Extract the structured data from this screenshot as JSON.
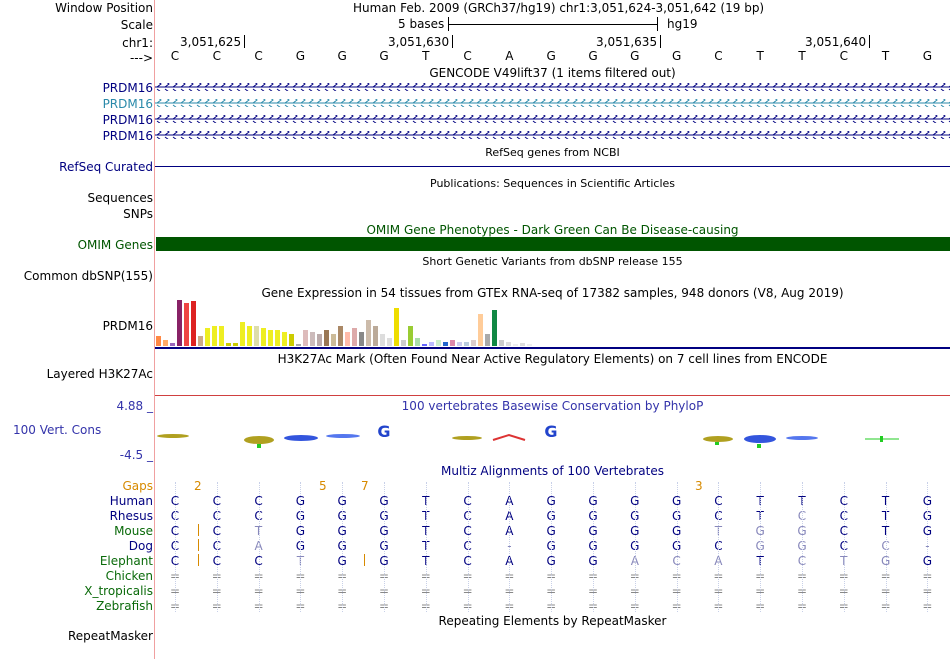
{
  "header": {
    "window_position_label": "Window Position",
    "window_position_value": "Human Feb. 2009 (GRCh37/hg19)   chr1:3,051,624-3,051,642 (19 bp)",
    "scale_label": "Scale",
    "scale_value": "5 bases",
    "scale_db": "hg19",
    "chrom_label": "chr1:",
    "coords": [
      "3,051,625",
      "3,051,630",
      "3,051,635",
      "3,051,640"
    ],
    "strand_label": "--->",
    "bases": [
      "C",
      "C",
      "C",
      "G",
      "G",
      "G",
      "T",
      "C",
      "A",
      "G",
      "G",
      "G",
      "G",
      "C",
      "T",
      "T",
      "C",
      "T",
      "G"
    ]
  },
  "tracks": {
    "gencode_title": "GENCODE V49lift37 (1 items filtered out)",
    "gencode_items": [
      "PRDM16",
      "PRDM16",
      "PRDM16",
      "PRDM16"
    ],
    "refseq_title": "RefSeq genes from NCBI",
    "refseq_label": "RefSeq Curated",
    "publications_title": "Publications: Sequences in Scientific Articles",
    "sequences_label": "Sequences",
    "snps_label": "SNPs",
    "omim_title": "OMIM Gene Phenotypes - Dark Green Can Be Disease-causing",
    "omim_label": "OMIM Genes",
    "dbsnp_title": "Short Genetic Variants from dbSNP release 155",
    "dbsnp_label": "Common dbSNP(155)",
    "gtex_title": "Gene Expression in 54 tissues from GTEx RNA-seq of 17382 samples, 948 donors (V8, Aug 2019)",
    "gtex_label": "PRDM16",
    "h3k27_title": "H3K27Ac Mark (Often Found Near Active Regulatory Elements) on 7 cell lines from ENCODE",
    "h3k27_label": "Layered H3K27Ac",
    "cons_max": "4.88 _",
    "cons_title": "100 vertebrates Basewise Conservation by PhyloP",
    "cons_label": "100 Vert. Cons",
    "cons_min": "-4.5 _",
    "multiz_title": "Multiz Alignments of 100 Vertebrates",
    "gaps_label": "Gaps",
    "gap_numbers": [
      "2",
      "5",
      "7",
      "3"
    ],
    "repeat_title": "Repeating Elements by RepeatMasker",
    "repeat_label": "RepeatMasker"
  },
  "alignment": [
    {
      "species": "Human",
      "bases": [
        "C",
        "C",
        "C",
        "G",
        "G",
        "G",
        "T",
        "C",
        "A",
        "G",
        "G",
        "G",
        "G",
        "C",
        "T",
        "T",
        "C",
        "T",
        "G"
      ]
    },
    {
      "species": "Rhesus",
      "bases": [
        "C",
        "C",
        "C",
        "G",
        "G",
        "G",
        "T",
        "C",
        "A",
        "G",
        "G",
        "G",
        "G",
        "C",
        "T",
        "C",
        "C",
        "T",
        "G"
      ]
    },
    {
      "species": "Mouse",
      "bases": [
        "C",
        "C",
        "T",
        "G",
        "G",
        "G",
        "T",
        "C",
        "A",
        "G",
        "G",
        "G",
        "G",
        "T",
        "G",
        "G",
        "C",
        "T",
        "G"
      ]
    },
    {
      "species": "Dog",
      "bases": [
        "C",
        "C",
        "A",
        "G",
        "G",
        "G",
        "T",
        "C",
        "-",
        "G",
        "G",
        "G",
        "G",
        "C",
        "G",
        "G",
        "C",
        "C",
        "-"
      ]
    },
    {
      "species": "Elephant",
      "bases": [
        "C",
        "C",
        "C",
        "T",
        "G",
        "G",
        "T",
        "C",
        "A",
        "G",
        "G",
        "A",
        "C",
        "A",
        "T",
        "C",
        "T",
        "G",
        "G"
      ]
    },
    {
      "species": "Chicken",
      "bases": [
        "=",
        "=",
        "=",
        "=",
        "=",
        "=",
        "=",
        "=",
        "=",
        "=",
        "=",
        "=",
        "=",
        "=",
        "=",
        "=",
        "=",
        "=",
        "="
      ]
    },
    {
      "species": "X_tropicalis",
      "bases": [
        "=",
        "=",
        "=",
        "=",
        "=",
        "=",
        "=",
        "=",
        "=",
        "=",
        "=",
        "=",
        "=",
        "=",
        "=",
        "=",
        "=",
        "=",
        "="
      ]
    },
    {
      "species": "Zebrafish",
      "bases": [
        "=",
        "=",
        "=",
        "=",
        "=",
        "=",
        "=",
        "=",
        "=",
        "=",
        "=",
        "=",
        "=",
        "=",
        "=",
        "=",
        "=",
        "=",
        "="
      ]
    }
  ],
  "colors": {
    "navy": "#000080",
    "omim_green": "#005500",
    "cons_blue": "#3333aa",
    "h3k27_red": "#d04040",
    "gaps_orange": "#d78a00",
    "species_green": "#0a6a0a",
    "gencode_teal": "#2a8aaa"
  }
}
